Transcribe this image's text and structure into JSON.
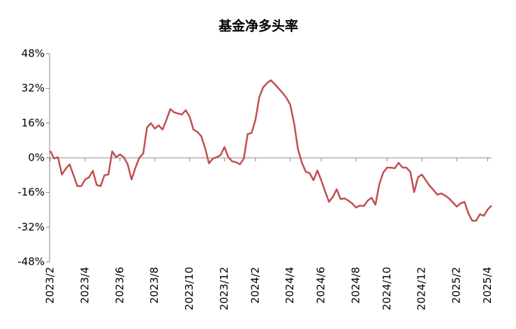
{
  "chart_data": {
    "type": "line",
    "title": "基金净多头率",
    "categories": [
      "2023/2",
      null,
      null,
      null,
      null,
      null,
      null,
      null,
      null,
      "2023/4",
      null,
      null,
      null,
      null,
      null,
      null,
      null,
      null,
      "2023/6",
      null,
      null,
      null,
      null,
      null,
      null,
      null,
      null,
      "2023/8",
      null,
      null,
      null,
      null,
      null,
      null,
      null,
      null,
      "2023/10",
      null,
      null,
      null,
      null,
      null,
      null,
      null,
      null,
      "2023/12",
      null,
      null,
      null,
      null,
      null,
      null,
      null,
      "2024/2",
      null,
      null,
      null,
      null,
      null,
      null,
      null,
      null,
      "2024/4",
      null,
      null,
      null,
      null,
      null,
      null,
      null,
      "2024/6",
      null,
      null,
      null,
      null,
      null,
      null,
      null,
      null,
      "2024/8",
      null,
      null,
      null,
      null,
      null,
      null,
      null,
      "2024/10",
      null,
      null,
      null,
      null,
      null,
      null,
      null,
      null,
      "2024/12",
      null,
      null,
      null,
      null,
      null,
      null,
      null,
      null,
      "2025/2",
      null,
      null,
      null,
      null,
      null,
      null,
      null,
      "2025/4",
      null
    ],
    "series": [
      {
        "color": "#c0504d",
        "values": [
          3.2,
          -0.3,
          0.3,
          -7.7,
          -5,
          -3,
          -8,
          -13,
          -13,
          -10,
          -9,
          -6,
          -12.5,
          -13,
          -8,
          -7.7,
          3,
          0.3,
          1.6,
          0.3,
          -3,
          -10,
          -4.5,
          0,
          2,
          14,
          16,
          13.5,
          15,
          13,
          17.5,
          22.5,
          21,
          20.5,
          20,
          22,
          19,
          13,
          12,
          10,
          4.5,
          -2.5,
          -0.3,
          0.3,
          1.3,
          5,
          0.3,
          -1.6,
          -2,
          -3,
          -0.3,
          11,
          11.5,
          17.5,
          28,
          32.5,
          34.5,
          35.8,
          34,
          32,
          30,
          27.7,
          24.5,
          15.8,
          3.9,
          -2.3,
          -6.4,
          -7,
          -10.3,
          -5.8,
          -10.3,
          -15.5,
          -20.3,
          -18,
          -14.5,
          -19,
          -18.7,
          -19.7,
          -21,
          -22.9,
          -22,
          -22.2,
          -19.7,
          -18.4,
          -21.6,
          -12.2,
          -6.8,
          -4.5,
          -4.5,
          -4.8,
          -2.3,
          -4.5,
          -4.5,
          -6.4,
          -15.8,
          -9,
          -7.7,
          -10.3,
          -12.9,
          -14.8,
          -17,
          -16.4,
          -17.4,
          -18.7,
          -20.6,
          -22.5,
          -21,
          -20.3,
          -25.5,
          -29,
          -29,
          -26,
          -26.7,
          -23.8,
          -22
        ]
      }
    ],
    "ylim": [
      -48,
      48
    ],
    "yticks": [
      {
        "value": -48,
        "label": "-48%"
      },
      {
        "value": -32,
        "label": "-32%"
      },
      {
        "value": -16,
        "label": "-16%"
      },
      {
        "value": 0,
        "label": "0%"
      },
      {
        "value": 16,
        "label": "16%"
      },
      {
        "value": 32,
        "label": "32%"
      },
      {
        "value": 48,
        "label": "48%"
      }
    ],
    "grid": false
  }
}
